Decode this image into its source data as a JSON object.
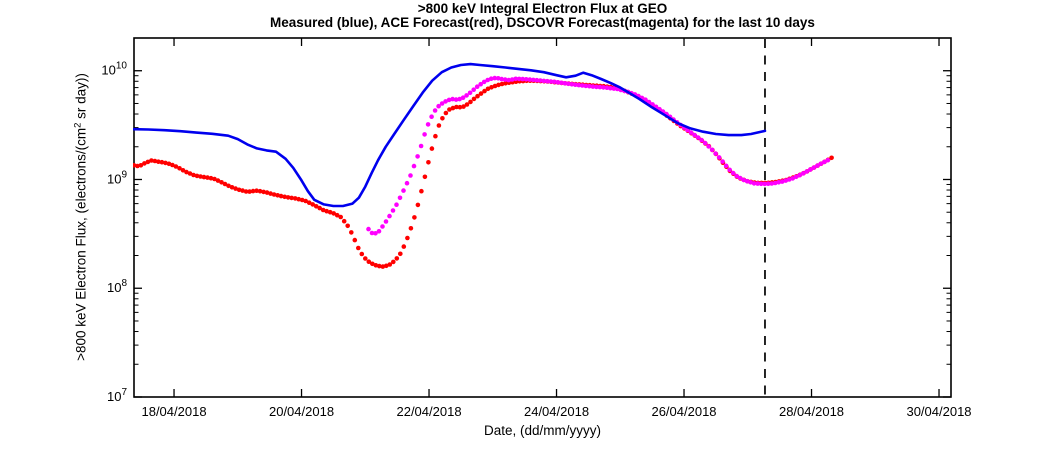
{
  "chart_data": {
    "type": "line",
    "title": ">800 keV Integral Electron Flux at GEO",
    "subtitle": "Measured (blue), ACE Forecast(red), DSCOVR Forecast(magenta) for the last 10 days",
    "xlabel": "Date, (dd/mm/yyyy)",
    "ylabel_parts": {
      "prefix": ">800 keV Electron Flux, (electrons/(cm",
      "sup": "2",
      "suffix": " sr day))"
    },
    "grid": false,
    "legend": "none (series identified by color in subtitle)",
    "axis_color": "#000000",
    "x_axis": {
      "unit": "day of April 2018",
      "min": 17.372,
      "max": 30.188,
      "ticks": [
        18,
        20,
        22,
        24,
        26,
        28,
        30
      ],
      "tick_labels": [
        "18/04/2018",
        "20/04/2018",
        "22/04/2018",
        "24/04/2018",
        "26/04/2018",
        "28/04/2018",
        "30/04/2018"
      ]
    },
    "y_axis": {
      "scale": "log",
      "min": 10000000.0,
      "max": 20000000000.0,
      "ticks": [
        10000000.0,
        100000000.0,
        1000000000.0,
        10000000000.0
      ],
      "tick_exponents": [
        7,
        8,
        9,
        10
      ]
    },
    "now_line": {
      "x": 27.27,
      "color": "#000000",
      "style": "dashed"
    },
    "series": [
      {
        "name": "ACE Forecast",
        "color": "#FF0000",
        "style": "dots",
        "points": [
          [
            17.37,
            1350000000.0
          ],
          [
            17.45,
            1320000000.0
          ],
          [
            17.55,
            1420000000.0
          ],
          [
            17.65,
            1500000000.0
          ],
          [
            17.75,
            1460000000.0
          ],
          [
            17.85,
            1430000000.0
          ],
          [
            17.95,
            1380000000.0
          ],
          [
            18.05,
            1300000000.0
          ],
          [
            18.18,
            1180000000.0
          ],
          [
            18.32,
            1090000000.0
          ],
          [
            18.48,
            1050000000.0
          ],
          [
            18.62,
            1020000000.0
          ],
          [
            18.75,
            940000000.0
          ],
          [
            18.88,
            860000000.0
          ],
          [
            19.0,
            810000000.0
          ],
          [
            19.15,
            770000000.0
          ],
          [
            19.3,
            790000000.0
          ],
          [
            19.45,
            760000000.0
          ],
          [
            19.6,
            720000000.0
          ],
          [
            19.75,
            690000000.0
          ],
          [
            19.9,
            670000000.0
          ],
          [
            20.05,
            640000000.0
          ],
          [
            20.2,
            580000000.0
          ],
          [
            20.35,
            520000000.0
          ],
          [
            20.5,
            490000000.0
          ],
          [
            20.62,
            450000000.0
          ],
          [
            20.72,
            380000000.0
          ],
          [
            20.8,
            310000000.0
          ],
          [
            20.88,
            240000000.0
          ],
          [
            20.97,
            195000000.0
          ],
          [
            21.07,
            172000000.0
          ],
          [
            21.17,
            162000000.0
          ],
          [
            21.27,
            158000000.0
          ],
          [
            21.37,
            163000000.0
          ],
          [
            21.47,
            180000000.0
          ],
          [
            21.57,
            215000000.0
          ],
          [
            21.66,
            290000000.0
          ],
          [
            21.74,
            390000000.0
          ],
          [
            21.81,
            540000000.0
          ],
          [
            21.88,
            780000000.0
          ],
          [
            21.95,
            1150000000.0
          ],
          [
            22.02,
            1700000000.0
          ],
          [
            22.09,
            2400000000.0
          ],
          [
            22.16,
            3200000000.0
          ],
          [
            22.24,
            3950000000.0
          ],
          [
            22.32,
            4400000000.0
          ],
          [
            22.42,
            4650000000.0
          ],
          [
            22.52,
            4600000000.0
          ],
          [
            22.62,
            5000000000.0
          ],
          [
            22.72,
            5600000000.0
          ],
          [
            22.82,
            6200000000.0
          ],
          [
            22.92,
            6800000000.0
          ],
          [
            23.02,
            7200000000.0
          ],
          [
            23.12,
            7500000000.0
          ],
          [
            23.27,
            7800000000.0
          ],
          [
            23.42,
            8000000000.0
          ],
          [
            23.57,
            8100000000.0
          ],
          [
            23.72,
            8050000000.0
          ],
          [
            23.87,
            7950000000.0
          ],
          [
            24.02,
            7800000000.0
          ],
          [
            24.2,
            7600000000.0
          ],
          [
            24.4,
            7450000000.0
          ],
          [
            24.6,
            7300000000.0
          ],
          [
            24.75,
            7200000000.0
          ],
          [
            24.9,
            7000000000.0
          ],
          [
            25.05,
            6600000000.0
          ],
          [
            25.2,
            6100000000.0
          ],
          [
            25.35,
            5500000000.0
          ],
          [
            25.5,
            4800000000.0
          ],
          [
            25.65,
            4200000000.0
          ],
          [
            25.8,
            3600000000.0
          ],
          [
            25.95,
            3100000000.0
          ],
          [
            26.1,
            2700000000.0
          ],
          [
            26.25,
            2350000000.0
          ],
          [
            26.4,
            2000000000.0
          ],
          [
            26.5,
            1720000000.0
          ],
          [
            26.6,
            1450000000.0
          ],
          [
            26.72,
            1200000000.0
          ],
          [
            26.85,
            1040000000.0
          ],
          [
            27.0,
            960000000.0
          ],
          [
            27.15,
            930000000.0
          ],
          [
            27.3,
            930000000.0
          ],
          [
            27.45,
            950000000.0
          ],
          [
            27.6,
            990000000.0
          ],
          [
            27.75,
            1060000000.0
          ],
          [
            27.9,
            1160000000.0
          ],
          [
            28.05,
            1300000000.0
          ],
          [
            28.2,
            1450000000.0
          ],
          [
            28.33,
            1600000000.0
          ]
        ]
      },
      {
        "name": "DSCOVR Forecast",
        "color": "#FF00FF",
        "style": "dots",
        "points": [
          [
            21.05,
            350000000.0
          ],
          [
            21.12,
            315000000.0
          ],
          [
            21.2,
            325000000.0
          ],
          [
            21.3,
            390000000.0
          ],
          [
            21.4,
            480000000.0
          ],
          [
            21.5,
            600000000.0
          ],
          [
            21.6,
            790000000.0
          ],
          [
            21.7,
            1050000000.0
          ],
          [
            21.78,
            1400000000.0
          ],
          [
            21.86,
            1900000000.0
          ],
          [
            21.93,
            2600000000.0
          ],
          [
            22.0,
            3400000000.0
          ],
          [
            22.08,
            4200000000.0
          ],
          [
            22.16,
            4800000000.0
          ],
          [
            22.25,
            5200000000.0
          ],
          [
            22.35,
            5500000000.0
          ],
          [
            22.45,
            5400000000.0
          ],
          [
            22.55,
            5700000000.0
          ],
          [
            22.65,
            6300000000.0
          ],
          [
            22.75,
            7100000000.0
          ],
          [
            22.85,
            7800000000.0
          ],
          [
            22.95,
            8400000000.0
          ],
          [
            23.05,
            8600000000.0
          ],
          [
            23.15,
            8350000000.0
          ],
          [
            23.25,
            8200000000.0
          ],
          [
            23.37,
            8450000000.0
          ],
          [
            23.52,
            8350000000.0
          ],
          [
            23.67,
            8200000000.0
          ],
          [
            23.82,
            8050000000.0
          ],
          [
            23.97,
            7900000000.0
          ],
          [
            24.17,
            7600000000.0
          ],
          [
            24.37,
            7350000000.0
          ],
          [
            24.57,
            7150000000.0
          ],
          [
            24.77,
            7000000000.0
          ],
          [
            24.95,
            6800000000.0
          ],
          [
            25.1,
            6450000000.0
          ],
          [
            25.25,
            6000000000.0
          ],
          [
            25.4,
            5400000000.0
          ],
          [
            25.55,
            4700000000.0
          ],
          [
            25.7,
            4100000000.0
          ],
          [
            25.85,
            3500000000.0
          ],
          [
            26.0,
            3000000000.0
          ],
          [
            26.15,
            2600000000.0
          ],
          [
            26.3,
            2250000000.0
          ],
          [
            26.45,
            1850000000.0
          ],
          [
            26.57,
            1550000000.0
          ],
          [
            26.7,
            1250000000.0
          ],
          [
            26.82,
            1080000000.0
          ],
          [
            26.95,
            980000000.0
          ],
          [
            27.1,
            920000000.0
          ],
          [
            27.25,
            910000000.0
          ],
          [
            27.4,
            920000000.0
          ],
          [
            27.55,
            960000000.0
          ],
          [
            27.7,
            1020000000.0
          ],
          [
            27.85,
            1120000000.0
          ],
          [
            28.0,
            1250000000.0
          ],
          [
            28.15,
            1400000000.0
          ],
          [
            28.3,
            1550000000.0
          ]
        ]
      },
      {
        "name": "Measured",
        "color": "#0000EE",
        "style": "line",
        "points": [
          [
            17.37,
            2900000000.0
          ],
          [
            17.6,
            2880000000.0
          ],
          [
            17.85,
            2840000000.0
          ],
          [
            18.1,
            2780000000.0
          ],
          [
            18.35,
            2700000000.0
          ],
          [
            18.6,
            2630000000.0
          ],
          [
            18.85,
            2530000000.0
          ],
          [
            19.0,
            2350000000.0
          ],
          [
            19.15,
            2100000000.0
          ],
          [
            19.3,
            1930000000.0
          ],
          [
            19.45,
            1850000000.0
          ],
          [
            19.6,
            1800000000.0
          ],
          [
            19.75,
            1550000000.0
          ],
          [
            19.87,
            1280000000.0
          ],
          [
            20.0,
            980000000.0
          ],
          [
            20.1,
            780000000.0
          ],
          [
            20.2,
            650000000.0
          ],
          [
            20.35,
            590000000.0
          ],
          [
            20.5,
            570000000.0
          ],
          [
            20.65,
            570000000.0
          ],
          [
            20.8,
            600000000.0
          ],
          [
            20.9,
            680000000.0
          ],
          [
            21.0,
            860000000.0
          ],
          [
            21.1,
            1150000000.0
          ],
          [
            21.2,
            1500000000.0
          ],
          [
            21.32,
            2000000000.0
          ],
          [
            21.45,
            2600000000.0
          ],
          [
            21.6,
            3500000000.0
          ],
          [
            21.75,
            4700000000.0
          ],
          [
            21.9,
            6300000000.0
          ],
          [
            22.05,
            8100000000.0
          ],
          [
            22.2,
            9700000000.0
          ],
          [
            22.35,
            10700000000.0
          ],
          [
            22.5,
            11300000000.0
          ],
          [
            22.65,
            11500000000.0
          ],
          [
            22.8,
            11300000000.0
          ],
          [
            23.0,
            11000000000.0
          ],
          [
            23.2,
            10700000000.0
          ],
          [
            23.4,
            10400000000.0
          ],
          [
            23.6,
            10100000000.0
          ],
          [
            23.8,
            9700000000.0
          ],
          [
            24.0,
            9100000000.0
          ],
          [
            24.15,
            8700000000.0
          ],
          [
            24.3,
            9000000000.0
          ],
          [
            24.42,
            9600000000.0
          ],
          [
            24.55,
            9100000000.0
          ],
          [
            24.7,
            8400000000.0
          ],
          [
            24.85,
            7700000000.0
          ],
          [
            25.0,
            7000000000.0
          ],
          [
            25.15,
            6200000000.0
          ],
          [
            25.3,
            5500000000.0
          ],
          [
            25.5,
            4600000000.0
          ],
          [
            25.7,
            3900000000.0
          ],
          [
            25.9,
            3300000000.0
          ],
          [
            26.1,
            2950000000.0
          ],
          [
            26.3,
            2750000000.0
          ],
          [
            26.5,
            2620000000.0
          ],
          [
            26.7,
            2560000000.0
          ],
          [
            26.9,
            2560000000.0
          ],
          [
            27.05,
            2620000000.0
          ],
          [
            27.27,
            2800000000.0
          ]
        ]
      }
    ]
  }
}
